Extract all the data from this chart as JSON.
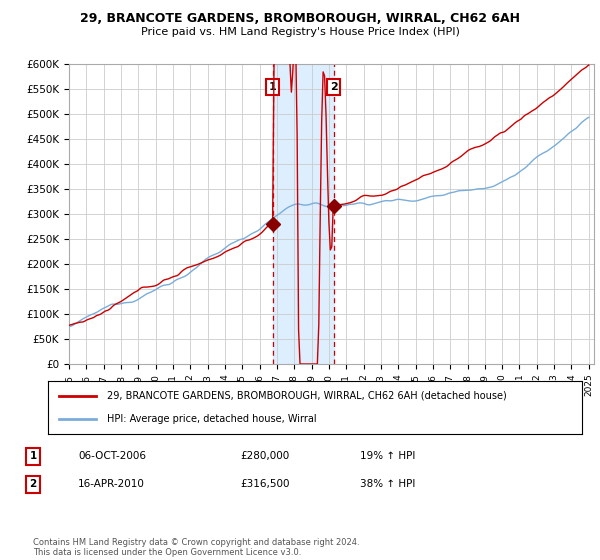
{
  "title_line1": "29, BRANCOTE GARDENS, BROMBOROUGH, WIRRAL, CH62 6AH",
  "title_line2": "Price paid vs. HM Land Registry's House Price Index (HPI)",
  "ylim": [
    0,
    600000
  ],
  "yticks": [
    0,
    50000,
    100000,
    150000,
    200000,
    250000,
    300000,
    350000,
    400000,
    450000,
    500000,
    550000,
    600000
  ],
  "ytick_labels": [
    "£0",
    "£50K",
    "£100K",
    "£150K",
    "£200K",
    "£250K",
    "£300K",
    "£350K",
    "£400K",
    "£450K",
    "£500K",
    "£550K",
    "£600K"
  ],
  "x_start_year": 1995,
  "x_end_year": 2025,
  "sale1_year": 2006.75,
  "sale1_price": 280000,
  "sale1_label": "1",
  "sale1_date": "06-OCT-2006",
  "sale1_hpi": "19% ↑ HPI",
  "sale2_year": 2010.28,
  "sale2_price": 316500,
  "sale2_label": "2",
  "sale2_date": "16-APR-2010",
  "sale2_hpi": "38% ↑ HPI",
  "hpi_line_color": "#7aadda",
  "price_line_color": "#cc0000",
  "sale_marker_color": "#880000",
  "shading_color": "#ddeeff",
  "vline_color": "#cc0000",
  "background_color": "#ffffff",
  "legend_entry1": "29, BRANCOTE GARDENS, BROMBOROUGH, WIRRAL, CH62 6AH (detached house)",
  "legend_entry2": "HPI: Average price, detached house, Wirral",
  "footer": "Contains HM Land Registry data © Crown copyright and database right 2024.\nThis data is licensed under the Open Government Licence v3.0."
}
